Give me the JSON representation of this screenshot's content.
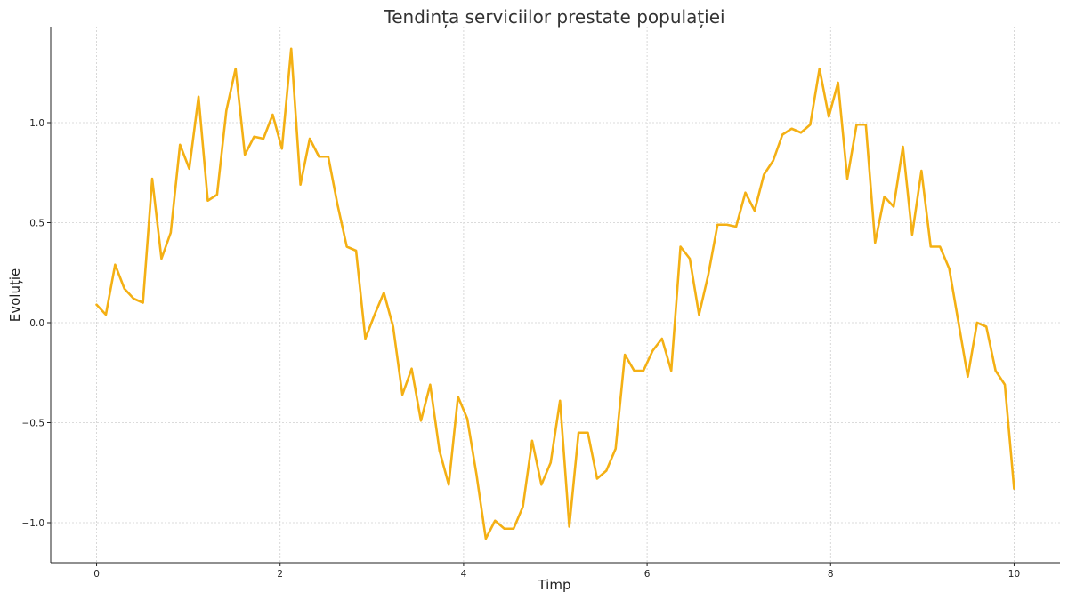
{
  "chart_data": {
    "type": "line",
    "title": "Tendința serviciilor prestate populației",
    "xlabel": "Timp",
    "ylabel": "Evoluție",
    "xlim": [
      -0.5,
      10.5
    ],
    "ylim": [
      -1.2,
      1.48
    ],
    "xticks": [
      0,
      2,
      4,
      6,
      8,
      10
    ],
    "xtick_labels": [
      "0",
      "2",
      "4",
      "6",
      "8",
      "10"
    ],
    "yticks": [
      -1.0,
      -0.5,
      0.0,
      0.5,
      1.0
    ],
    "ytick_labels": [
      "−1.0",
      "−0.5",
      "0.0",
      "0.5",
      "1.0"
    ],
    "grid": true,
    "line_color": "#f4b014",
    "series": [
      {
        "x": [
          0,
          0.101,
          0.202,
          0.303,
          0.404,
          0.505,
          0.606,
          0.707,
          0.808,
          0.909,
          1.01,
          1.111,
          1.212,
          1.313,
          1.414,
          1.515,
          1.616,
          1.717,
          1.818,
          1.919,
          2.02,
          2.121,
          2.222,
          2.323,
          2.424,
          2.525,
          2.626,
          2.727,
          2.828,
          2.929,
          3.03,
          3.131,
          3.232,
          3.333,
          3.434,
          3.535,
          3.636,
          3.737,
          3.838,
          3.939,
          4.04,
          4.141,
          4.242,
          4.343,
          4.444,
          4.545,
          4.646,
          4.747,
          4.848,
          4.949,
          5.051,
          5.152,
          5.253,
          5.354,
          5.455,
          5.556,
          5.657,
          5.758,
          5.859,
          5.96,
          6.061,
          6.162,
          6.263,
          6.364,
          6.465,
          6.566,
          6.667,
          6.768,
          6.869,
          6.97,
          7.071,
          7.172,
          7.273,
          7.374,
          7.475,
          7.576,
          7.677,
          7.778,
          7.879,
          7.98,
          8.081,
          8.182,
          8.283,
          8.384,
          8.485,
          8.586,
          8.687,
          8.788,
          8.889,
          8.99,
          9.091,
          9.192,
          9.293,
          9.394,
          9.495,
          9.596,
          9.697,
          9.798,
          9.899,
          10.0
        ],
        "y": [
          0.09,
          0.04,
          0.29,
          0.17,
          0.12,
          0.1,
          0.72,
          0.32,
          0.45,
          0.89,
          0.77,
          1.13,
          0.61,
          0.64,
          1.06,
          1.27,
          0.84,
          0.93,
          0.92,
          1.04,
          0.87,
          1.37,
          0.69,
          0.92,
          0.83,
          0.83,
          0.59,
          0.38,
          0.36,
          -0.08,
          0.04,
          0.15,
          -0.02,
          -0.36,
          -0.23,
          -0.49,
          -0.31,
          -0.64,
          -0.81,
          -0.37,
          -0.48,
          -0.76,
          -1.08,
          -0.99,
          -1.03,
          -1.03,
          -0.92,
          -0.59,
          -0.81,
          -0.7,
          -0.39,
          -1.02,
          -0.55,
          -0.55,
          -0.78,
          -0.74,
          -0.63,
          -0.16,
          -0.24,
          -0.24,
          -0.14,
          -0.08,
          -0.24,
          0.38,
          0.32,
          0.04,
          0.24,
          0.49,
          0.49,
          0.48,
          0.65,
          0.56,
          0.74,
          0.81,
          0.94,
          0.97,
          0.95,
          0.99,
          1.27,
          1.03,
          1.2,
          0.72,
          0.99,
          0.99,
          0.4,
          0.63,
          0.58,
          0.88,
          0.44,
          0.76,
          0.38,
          0.38,
          0.27,
          0.0,
          -0.27,
          0.0,
          -0.02,
          -0.24,
          -0.31,
          -0.83
        ]
      }
    ]
  }
}
